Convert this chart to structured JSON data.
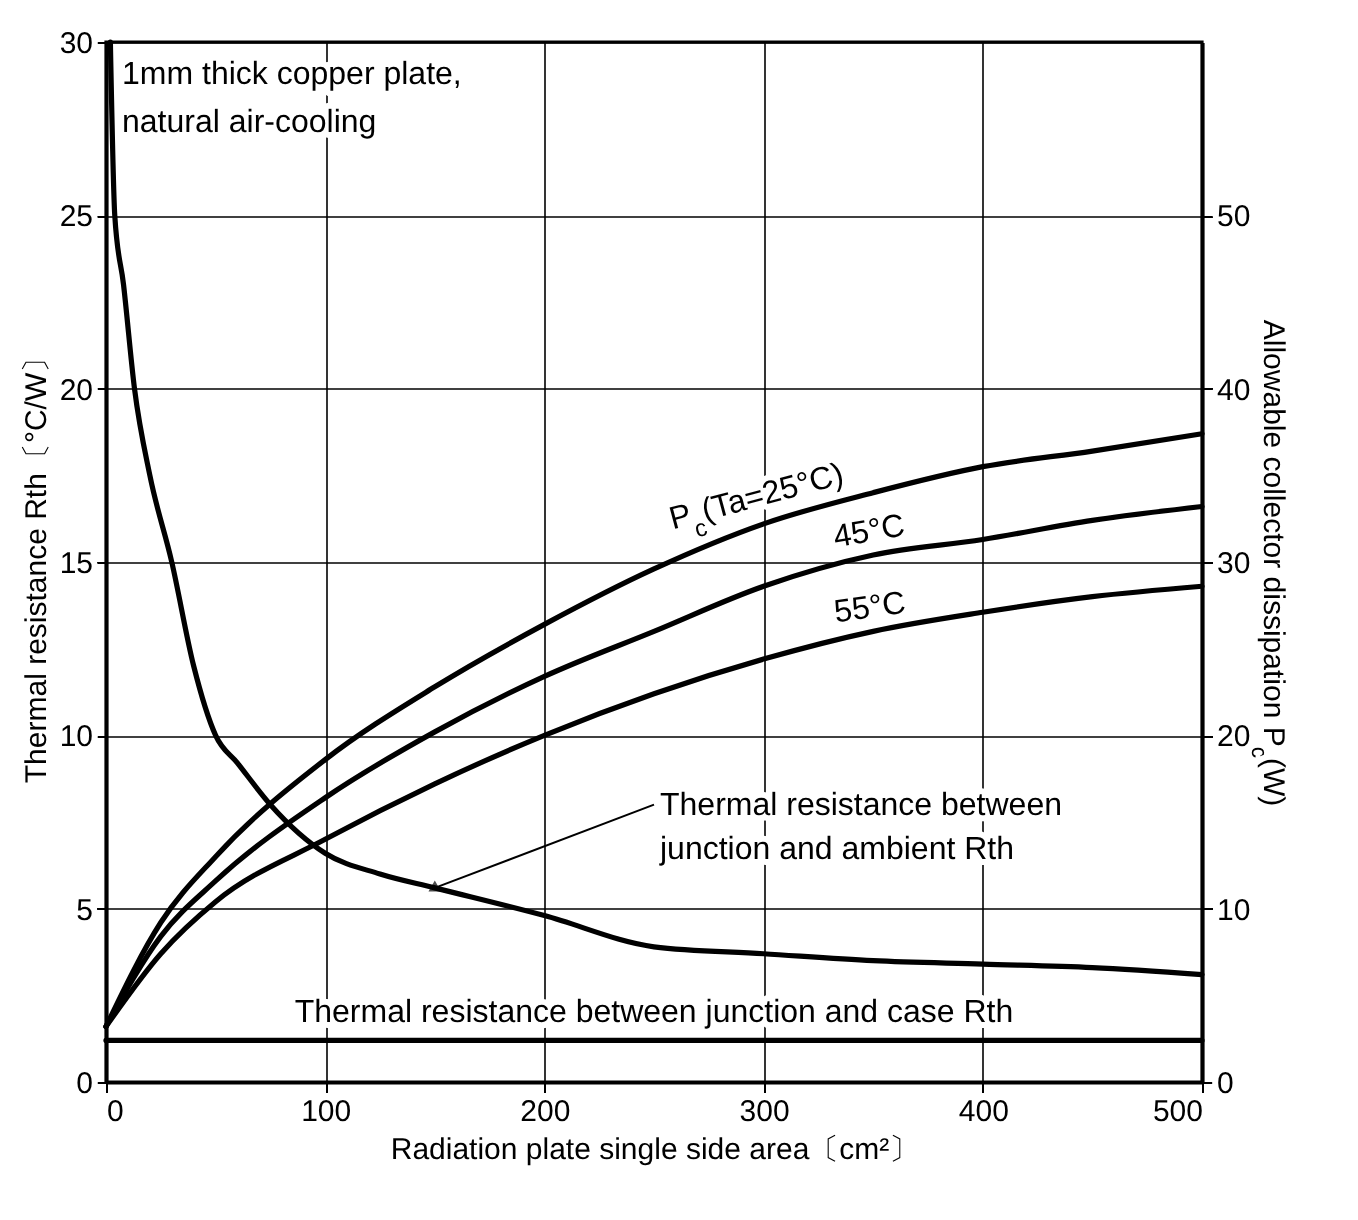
{
  "chart_data": {
    "type": "line",
    "xlabel": "Radiation plate single side area〔cm²〕",
    "ylabel": "Thermal resistance Rth〔°C/W〕",
    "y2label": "Allowable collector dissipation P$_{c}$(W)",
    "annotations": [
      "1mm thick copper plate, natural air-cooling"
    ],
    "x": [
      0,
      25,
      50,
      100,
      150,
      200,
      250,
      300,
      350,
      400,
      450,
      500
    ],
    "xlim": [
      0,
      500
    ],
    "xticks": [
      0,
      100,
      200,
      300,
      400,
      500
    ],
    "ylim": [
      0,
      30
    ],
    "yticks": [
      0,
      5,
      10,
      15,
      20,
      25,
      30
    ],
    "y2lim": [
      0,
      60
    ],
    "y2ticks": [
      0,
      10,
      20,
      30,
      40,
      50
    ],
    "grid": true,
    "line_style": "solid",
    "series": [
      {
        "name": "P$_{c}$(Ta=25°C)",
        "color": "#000000",
        "axis": "y2",
        "values": [
          3.2,
          9.2,
          13,
          18.6,
          22.8,
          26.4,
          29.6,
          32.2,
          34,
          35.5,
          36.4,
          37.4
        ]
      },
      {
        "name": "45°C",
        "color": "#000000",
        "axis": "y2",
        "values": [
          3.2,
          8.4,
          11.6,
          16.4,
          20.2,
          23.4,
          26,
          28.6,
          30.4,
          31.3,
          32.4,
          33.2
        ]
      },
      {
        "name": "55°C",
        "color": "#000000",
        "axis": "y2",
        "values": [
          3.2,
          7.4,
          10.4,
          14,
          17.2,
          20,
          22.4,
          24.4,
          26,
          27.1,
          28,
          28.6
        ]
      },
      {
        "name": "Thermal resistance between junction and ambient Rth",
        "color": "#000000",
        "x": [
          2,
          4,
          8,
          13,
          20,
          30,
          40,
          50,
          60,
          75,
          100,
          125,
          150,
          200,
          250,
          300,
          350,
          400,
          450,
          500
        ],
        "values": [
          30,
          25,
          23,
          20,
          17.5,
          15,
          12,
          10,
          9.2,
          8,
          6.6,
          6,
          5.6,
          4.8,
          3.9,
          3.7,
          3.5,
          3.4,
          3.3,
          3.1
        ]
      },
      {
        "name": "Thermal resistance between junction and case Rth",
        "color": "#000000",
        "x": [
          0,
          500
        ],
        "values": [
          1.2,
          1.2
        ]
      }
    ]
  }
}
